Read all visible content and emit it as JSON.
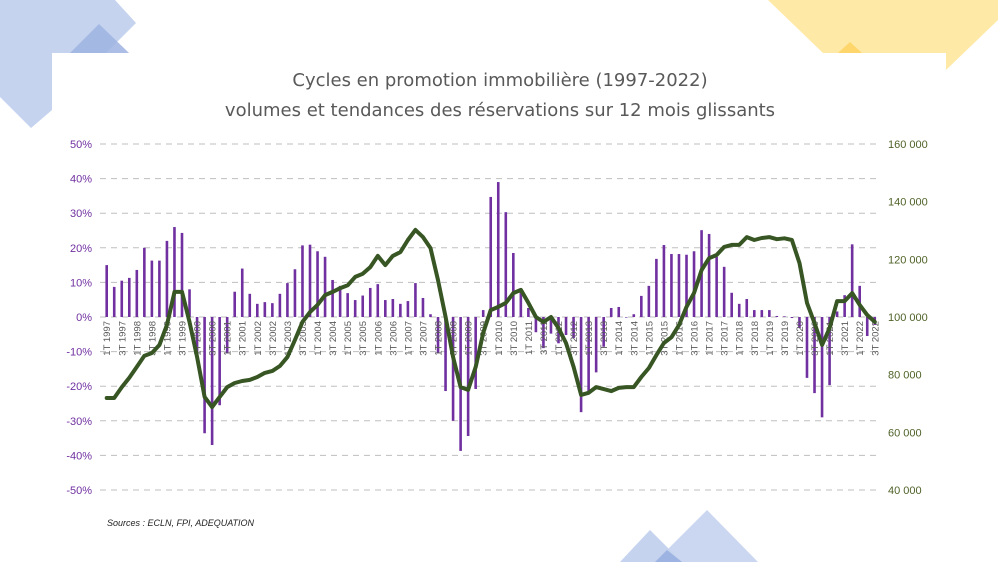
{
  "chart_data": {
    "type": "bar+line",
    "title": "Cycles en promotion immobilière (1997-2022)",
    "subtitle": "volumes et tendances des réservations sur 12 mois glissants",
    "source": "Sources : ECLN, FPI, ADEQUATION",
    "grid": true,
    "legend": "none",
    "colors": {
      "bars": "#7030A0",
      "line": "#375623",
      "left_axis": "#7030A0",
      "right_axis": "#4F6228",
      "grid": "#BFBFBF"
    },
    "left_axis": {
      "ylim": [
        -50,
        50
      ],
      "ticks": [
        "50%",
        "40%",
        "30%",
        "20%",
        "10%",
        "0%",
        "-10%",
        "-20%",
        "-30%",
        "-40%",
        "-50%"
      ],
      "tick_values": [
        50,
        40,
        30,
        20,
        10,
        0,
        -10,
        -20,
        -30,
        -40,
        -50
      ]
    },
    "right_axis": {
      "ylim": [
        40000,
        160000
      ],
      "ticks": [
        "160 000",
        "140 000",
        "120 000",
        "100 000",
        "80 000",
        "60 000",
        "40 000"
      ],
      "tick_values": [
        160000,
        140000,
        120000,
        100000,
        80000,
        60000,
        40000
      ]
    },
    "x_tick_labels": [
      "1T 1997",
      "3T 1997",
      "1T 1998",
      "3T 1998",
      "1T 1999",
      "3T 1999",
      "1T 2000",
      "3T 2000",
      "1T 2001",
      "3T 2001",
      "1T 2002",
      "3T 2002",
      "1T 2003",
      "3T 2003",
      "1T 2004",
      "3T 2004",
      "1T 2005",
      "3T 2005",
      "1T 2006",
      "3T 2006",
      "1T 2007",
      "3T 2007",
      "1T 2008",
      "3T 2008",
      "1T 2009",
      "3T 2009",
      "1T 2010",
      "3T 2010",
      "1T 2011",
      "3T 2011",
      "1T 2012",
      "3T 2012",
      "1T 2013",
      "3T 2013",
      "1T 2014",
      "3T 2014",
      "1T 2015",
      "3T 2015",
      "1T 2016",
      "3T 2016",
      "1T 2017",
      "3T 2017",
      "1T 2018",
      "3T 2018",
      "1T 2019",
      "3T 2019",
      "1T 2020",
      "3T 2020",
      "1T 2021",
      "3T 2021",
      "1T 2022",
      "3T 2022"
    ],
    "series": [
      {
        "type": "bar",
        "axis": "left",
        "unit": "%",
        "values": [
          15,
          8.7,
          10.5,
          11.3,
          13.6,
          20,
          16.3,
          16.3,
          22,
          26,
          24.3,
          8,
          -10.5,
          -33.6,
          -37,
          -25.5,
          -10.5,
          7.3,
          14,
          6.7,
          3.8,
          4.3,
          4,
          6.7,
          9.8,
          13.8,
          20.7,
          20.9,
          19,
          17.4,
          10.7,
          9,
          6.9,
          4.9,
          6.2,
          8.4,
          9.5,
          4.9,
          5.2,
          3.8,
          4.6,
          9.8,
          5.5,
          0.8,
          -10.5,
          -21.4,
          -30,
          -38.7,
          -34.4,
          -20.8,
          2,
          34.7,
          39,
          30.3,
          18.5,
          7.2,
          2.6,
          -4.4,
          -9,
          -4.8,
          -7.6,
          -5.2,
          -6.1,
          -27.5,
          -22,
          -16,
          -8.6,
          2.6,
          2.9,
          0,
          0.8,
          6.1,
          9,
          16.8,
          20.8,
          18.2,
          18.2,
          18,
          19,
          25.1,
          24,
          17.4,
          14.5,
          7,
          3.8,
          5.2,
          2,
          2,
          2,
          0.3,
          0.2,
          -0.3,
          -3.2,
          -17.6,
          -22,
          -29,
          -19.7,
          1.6,
          6.3,
          21,
          9,
          -5.5,
          -2.3
        ]
      },
      {
        "type": "line",
        "axis": "right",
        "values": [
          71900,
          71900,
          75700,
          78900,
          82700,
          86500,
          87500,
          90300,
          97200,
          108700,
          108700,
          98300,
          86100,
          72300,
          68800,
          72300,
          75700,
          77100,
          77800,
          78200,
          79200,
          80600,
          81300,
          83000,
          86100,
          92000,
          98300,
          101700,
          104200,
          107600,
          108700,
          110000,
          111000,
          113900,
          115000,
          117300,
          121200,
          118000,
          121200,
          122500,
          126700,
          130200,
          127700,
          123900,
          112800,
          100000,
          86100,
          75700,
          74700,
          82700,
          94500,
          102400,
          103500,
          104900,
          108300,
          109400,
          104900,
          100000,
          98300,
          100000,
          96200,
          91000,
          82700,
          73000,
          73700,
          75700,
          75000,
          74300,
          75400,
          75700,
          75700,
          79200,
          82300,
          86800,
          91000,
          93000,
          97200,
          103500,
          108300,
          116300,
          120400,
          121500,
          124300,
          125000,
          125000,
          127700,
          126700,
          127400,
          127700,
          127000,
          127300,
          126700,
          118700,
          104900,
          97900,
          90300,
          96200,
          105500,
          105500,
          108300,
          104200,
          100700,
          98300
        ]
      }
    ]
  }
}
